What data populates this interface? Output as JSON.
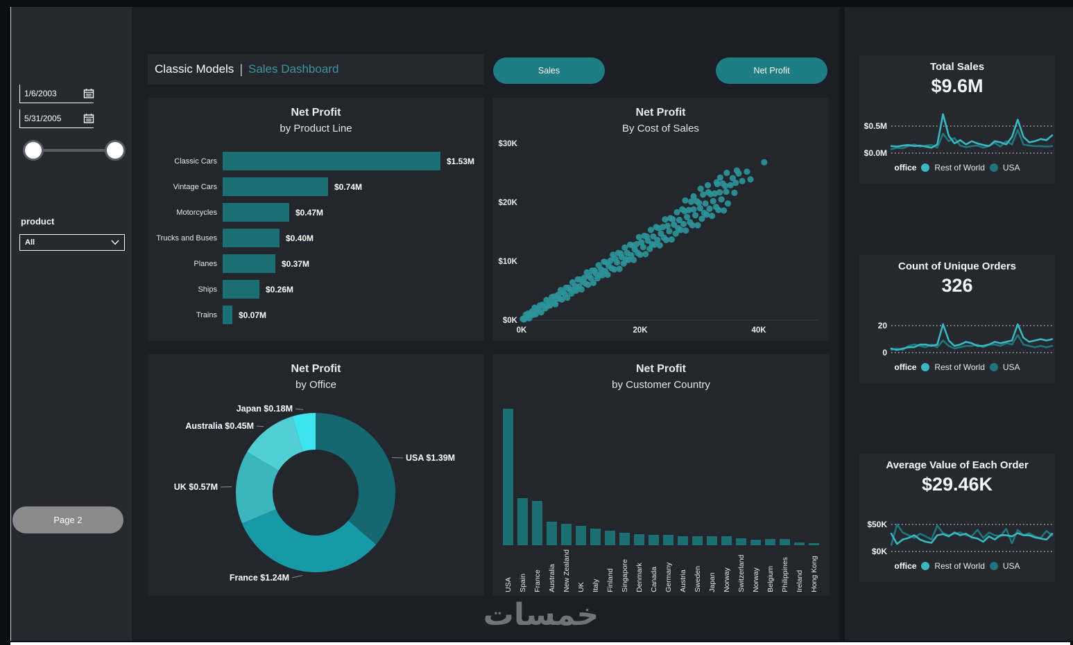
{
  "header": {
    "title": "Classic Models",
    "separator": "|",
    "subtitle": "Sales Dashboard",
    "sales_button": "Sales",
    "net_profit_button": "Net Profit"
  },
  "sidebar": {
    "start_date": "1/6/2003",
    "end_date": "5/31/2005",
    "product_label": "product",
    "product_value": "All",
    "page_button": "Page 2"
  },
  "watermark": "خمسات",
  "colors": {
    "accent_teal": "#1e7c83",
    "bar_teal": "#1b6e74",
    "scatter_teal": "#2d9499",
    "line_light": "#3ab8be",
    "line_dark": "#1f767d",
    "panel_bg": "#23262c",
    "card_bg": "#25282f",
    "sidebar_bg": "#262930",
    "main_bg": "#1b1e24"
  },
  "chart_data": {
    "product_line": {
      "type": "bar",
      "orientation": "horizontal",
      "title": [
        "Net Profit",
        "by Product Line"
      ],
      "categories": [
        "Classic Cars",
        "Vintage Cars",
        "Motorcycles",
        "Trucks and Buses",
        "Planes",
        "Ships",
        "Trains"
      ],
      "values": [
        1.53,
        0.74,
        0.47,
        0.4,
        0.37,
        0.26,
        0.07
      ],
      "labels": [
        "$1.53M",
        "$0.74M",
        "$0.47M",
        "$0.40M",
        "$0.37M",
        "$0.26M",
        "$0.07M"
      ],
      "color": "#1b6e74"
    },
    "cost_of_sales": {
      "type": "scatter",
      "title": [
        "Net Profit",
        "By Cost of Sales"
      ],
      "xlabel": "Cost of Sales",
      "ylabel": "Net Profit",
      "x_ticks": {
        "labels": [
          "0K",
          "20K",
          "40K"
        ],
        "values": [
          0,
          20,
          40
        ]
      },
      "y_ticks": {
        "labels": [
          "$30K",
          "$20K",
          "$10K",
          "$0K"
        ],
        "values": [
          30,
          20,
          10,
          0
        ]
      },
      "xlim": [
        0,
        44
      ],
      "ylim": [
        0,
        30
      ],
      "color": "#2d9499",
      "points": [
        [
          0.2,
          0.2
        ],
        [
          0.4,
          0.1
        ],
        [
          0.7,
          0.9
        ],
        [
          0.9,
          0.4
        ],
        [
          1.1,
          1.1
        ],
        [
          1.3,
          0.3
        ],
        [
          1.5,
          1.0
        ],
        [
          1.8,
          1.5
        ],
        [
          2.0,
          0.9
        ],
        [
          2.2,
          2.1
        ],
        [
          2.4,
          1.0
        ],
        [
          2.6,
          1.9
        ],
        [
          2.9,
          1.7
        ],
        [
          3.1,
          2.5
        ],
        [
          3.3,
          1.3
        ],
        [
          3.5,
          2.6
        ],
        [
          3.7,
          2.4
        ],
        [
          4.0,
          2.0
        ],
        [
          4.2,
          3.4
        ],
        [
          4.4,
          2.4
        ],
        [
          4.6,
          3.0
        ],
        [
          4.8,
          2.5
        ],
        [
          5.1,
          3.9
        ],
        [
          5.3,
          3.0
        ],
        [
          5.5,
          4.0
        ],
        [
          5.7,
          2.7
        ],
        [
          5.9,
          3.7
        ],
        [
          6.2,
          4.3
        ],
        [
          6.4,
          3.6
        ],
        [
          6.6,
          5.1
        ],
        [
          6.8,
          3.5
        ],
        [
          7.0,
          4.7
        ],
        [
          7.3,
          4.4
        ],
        [
          7.5,
          5.5
        ],
        [
          7.7,
          3.8
        ],
        [
          7.9,
          5.5
        ],
        [
          8.1,
          5.2
        ],
        [
          8.4,
          4.5
        ],
        [
          8.6,
          6.4
        ],
        [
          8.8,
          5.1
        ],
        [
          9.0,
          5.8
        ],
        [
          9.2,
          5.0
        ],
        [
          9.5,
          6.9
        ],
        [
          9.7,
          5.7
        ],
        [
          9.9,
          6.9
        ],
        [
          10.1,
          5.2
        ],
        [
          10.3,
          6.5
        ],
        [
          10.6,
          7.2
        ],
        [
          10.8,
          6.2
        ],
        [
          11.0,
          8.1
        ],
        [
          11.2,
          6.0
        ],
        [
          11.4,
          7.5
        ],
        [
          11.7,
          7.1
        ],
        [
          11.9,
          8.4
        ],
        [
          12.1,
          6.3
        ],
        [
          12.3,
          8.4
        ],
        [
          12.5,
          7.9
        ],
        [
          12.8,
          7.1
        ],
        [
          13.0,
          9.3
        ],
        [
          13.2,
          7.7
        ],
        [
          13.4,
          8.6
        ],
        [
          13.6,
          7.6
        ],
        [
          13.9,
          9.9
        ],
        [
          14.1,
          8.3
        ],
        [
          14.3,
          9.8
        ],
        [
          14.5,
          7.7
        ],
        [
          14.7,
          9.2
        ],
        [
          15.0,
          10.1
        ],
        [
          15.2,
          8.8
        ],
        [
          15.4,
          11.1
        ],
        [
          15.6,
          8.6
        ],
        [
          15.8,
          10.4
        ],
        [
          16.1,
          9.8
        ],
        [
          16.3,
          11.4
        ],
        [
          16.5,
          8.7
        ],
        [
          16.7,
          11.3
        ],
        [
          16.9,
          10.7
        ],
        [
          17.2,
          9.6
        ],
        [
          17.4,
          12.3
        ],
        [
          17.6,
          10.3
        ],
        [
          17.8,
          11.4
        ],
        [
          18.0,
          10.2
        ],
        [
          18.3,
          12.8
        ],
        [
          18.5,
          11.0
        ],
        [
          18.7,
          12.7
        ],
        [
          18.9,
          10.2
        ],
        [
          19.1,
          12.0
        ],
        [
          19.4,
          12.9
        ],
        [
          19.6,
          11.4
        ],
        [
          19.8,
          14.1
        ],
        [
          20.0,
          11.1
        ],
        [
          20.2,
          13.2
        ],
        [
          20.5,
          12.4
        ],
        [
          20.7,
          14.3
        ],
        [
          20.9,
          11.2
        ],
        [
          21.1,
          14.2
        ],
        [
          21.3,
          13.5
        ],
        [
          21.6,
          12.1
        ],
        [
          21.8,
          15.3
        ],
        [
          22.0,
          12.9
        ],
        [
          22.2,
          14.2
        ],
        [
          22.4,
          12.8
        ],
        [
          22.7,
          15.8
        ],
        [
          22.9,
          13.6
        ],
        [
          23.1,
          15.6
        ],
        [
          23.3,
          12.7
        ],
        [
          23.5,
          14.7
        ],
        [
          23.8,
          15.8
        ],
        [
          24.0,
          14.0
        ],
        [
          24.2,
          17.1
        ],
        [
          24.4,
          13.6
        ],
        [
          24.6,
          16.0
        ],
        [
          24.9,
          15.1
        ],
        [
          25.1,
          17.3
        ],
        [
          25.3,
          13.7
        ],
        [
          25.5,
          17.1
        ],
        [
          25.7,
          16.2
        ],
        [
          26.0,
          14.7
        ],
        [
          26.2,
          18.3
        ],
        [
          26.4,
          15.6
        ],
        [
          26.6,
          17.0
        ],
        [
          26.8,
          15.3
        ],
        [
          27.1,
          18.8
        ],
        [
          27.3,
          16.3
        ],
        [
          27.5,
          18.5
        ],
        [
          27.7,
          15.2
        ],
        [
          27.9,
          17.5
        ],
        [
          28.2,
          18.7
        ],
        [
          28.4,
          16.6
        ],
        [
          28.6,
          20.1
        ],
        [
          28.8,
          16.1
        ],
        [
          29.0,
          18.8
        ],
        [
          29.3,
          17.8
        ],
        [
          29.5,
          20.2
        ],
        [
          29.7,
          16.1
        ],
        [
          29.9,
          19.9
        ],
        [
          30.1,
          19.0
        ],
        [
          30.4,
          17.2
        ],
        [
          30.6,
          21.3
        ],
        [
          30.8,
          18.2
        ],
        [
          31.0,
          19.8
        ],
        [
          31.2,
          17.9
        ],
        [
          31.5,
          21.7
        ],
        [
          31.7,
          18.9
        ],
        [
          31.9,
          21.4
        ],
        [
          32.1,
          17.7
        ],
        [
          32.3,
          20.2
        ],
        [
          32.6,
          21.5
        ],
        [
          32.8,
          19.2
        ],
        [
          33.0,
          23.1
        ],
        [
          33.2,
          18.7
        ],
        [
          33.4,
          21.7
        ],
        [
          33.7,
          20.5
        ],
        [
          33.9,
          23.2
        ],
        [
          34.1,
          18.6
        ],
        [
          34.3,
          22.8
        ],
        [
          34.5,
          21.8
        ],
        [
          34.8,
          19.8
        ],
        [
          35.2,
          22.9
        ],
        [
          35.6,
          24.1
        ],
        [
          36.1,
          23.3
        ],
        [
          36.6,
          24.9
        ],
        [
          37.2,
          23.6
        ],
        [
          38.0,
          25.2
        ],
        [
          38.6,
          23.9
        ],
        [
          40.9,
          26.8
        ],
        [
          34.6,
          25.0
        ],
        [
          35.9,
          21.6
        ],
        [
          33.5,
          24.2
        ],
        [
          36.3,
          25.4
        ],
        [
          30.2,
          22.3
        ],
        [
          31.4,
          22.9
        ],
        [
          29.0,
          21.0
        ],
        [
          27.6,
          20.3
        ],
        [
          32.9,
          23.4
        ]
      ]
    },
    "office_donut": {
      "type": "pie",
      "subtype": "donut",
      "title": [
        "Net Profit",
        "by Office"
      ],
      "slices": [
        {
          "country": "USA",
          "label": "USA $1.39M",
          "value": 1.39,
          "color": "#166870"
        },
        {
          "country": "France",
          "label": "France $1.24M",
          "value": 1.24,
          "color": "#179aa5"
        },
        {
          "country": "UK",
          "label": "UK $0.57M",
          "value": 0.57,
          "color": "#3cb6be"
        },
        {
          "country": "Australia",
          "label": "Australia $0.45M",
          "value": 0.45,
          "color": "#52ced5"
        },
        {
          "country": "Japan",
          "label": "Japan $0.18M",
          "value": 0.18,
          "color": "#3ee3f0"
        }
      ]
    },
    "country_bar": {
      "type": "bar",
      "orientation": "vertical",
      "title": [
        "Net Profit",
        "by Customer Country"
      ],
      "categories": [
        "USA",
        "Spain",
        "France",
        "Australia",
        "New Zealand",
        "UK",
        "Italy",
        "Finland",
        "Singapore",
        "Denmark",
        "Canada",
        "Germany",
        "Austria",
        "Sweden",
        "Japan",
        "Norway",
        "Switzerland",
        "Norway",
        "Belgium",
        "Philippines",
        "Ireland",
        "Hong Kong"
      ],
      "values": [
        1.33,
        0.46,
        0.43,
        0.23,
        0.21,
        0.19,
        0.16,
        0.14,
        0.12,
        0.11,
        0.1,
        0.1,
        0.09,
        0.09,
        0.085,
        0.09,
        0.07,
        0.055,
        0.06,
        0.06,
        0.025,
        0.02
      ],
      "color": "#1b6e74"
    },
    "kpi_total_sales": {
      "type": "line",
      "title": "Total Sales",
      "value": "$9.6M",
      "y_ticks": {
        "labels": [
          "$0.5M",
          "$0.0M"
        ],
        "values": [
          0.5,
          0.0
        ]
      },
      "legend_title": "office",
      "series": [
        {
          "name": "Rest of World",
          "color": "#3ab8be",
          "values": [
            0.13,
            0.12,
            0.14,
            0.15,
            0.13,
            0.14,
            0.12,
            0.1,
            0.16,
            0.72,
            0.32,
            0.18,
            0.24,
            0.16,
            0.22,
            0.18,
            0.15,
            0.13,
            0.22,
            0.2,
            0.16,
            0.3,
            0.62,
            0.3,
            0.2,
            0.22,
            0.26,
            0.24,
            0.33
          ]
        },
        {
          "name": "USA",
          "color": "#1f767d",
          "values": [
            0.07,
            0.1,
            0.09,
            0.13,
            0.16,
            0.12,
            0.14,
            0.15,
            0.1,
            0.36,
            0.22,
            0.28,
            0.14,
            0.11,
            0.13,
            0.14,
            0.1,
            0.13,
            0.19,
            0.12,
            0.22,
            0.16,
            0.43,
            0.16,
            0.14,
            0.13,
            0.13,
            0.12,
            0.13
          ]
        }
      ]
    },
    "kpi_orders": {
      "type": "line",
      "title": "Count of Unique Orders",
      "value": "326",
      "y_ticks": {
        "labels": [
          "20",
          "0"
        ],
        "values": [
          20,
          0
        ]
      },
      "legend_title": "office",
      "series": [
        {
          "name": "Rest of World",
          "color": "#3ab8be",
          "values": [
            3,
            2,
            3,
            4,
            4,
            6,
            6,
            5,
            6,
            21,
            9,
            5,
            6,
            8,
            7,
            5,
            5,
            6,
            8,
            7,
            8,
            9,
            21,
            11,
            8,
            9,
            10,
            9,
            10
          ]
        },
        {
          "name": "USA",
          "color": "#1f767d",
          "values": [
            2,
            3,
            2,
            5,
            6,
            5,
            4,
            6,
            4,
            9,
            5,
            3,
            4,
            5,
            5,
            6,
            4,
            6,
            6,
            5,
            7,
            6,
            13,
            6,
            5,
            4,
            5,
            4,
            5
          ]
        }
      ]
    },
    "kpi_avg_order": {
      "type": "line",
      "title": "Average Value of Each Order",
      "value": "$29.46K",
      "y_ticks": {
        "labels": [
          "$50K",
          "$0K"
        ],
        "values": [
          50,
          0
        ]
      },
      "legend_title": "office",
      "series": [
        {
          "name": "Rest of World",
          "color": "#3ab8be",
          "values": [
            33,
            14,
            22,
            25,
            30,
            22,
            18,
            16,
            30,
            32,
            28,
            35,
            30,
            33,
            26,
            24,
            18,
            28,
            22,
            30,
            30,
            28,
            34,
            30,
            30,
            26,
            24,
            22,
            33
          ]
        },
        {
          "name": "USA",
          "color": "#1f767d",
          "values": [
            12,
            50,
            35,
            30,
            25,
            33,
            28,
            22,
            48,
            34,
            30,
            33,
            35,
            30,
            28,
            40,
            25,
            35,
            30,
            28,
            42,
            15,
            40,
            30,
            34,
            28,
            25,
            38,
            30
          ]
        }
      ]
    }
  }
}
